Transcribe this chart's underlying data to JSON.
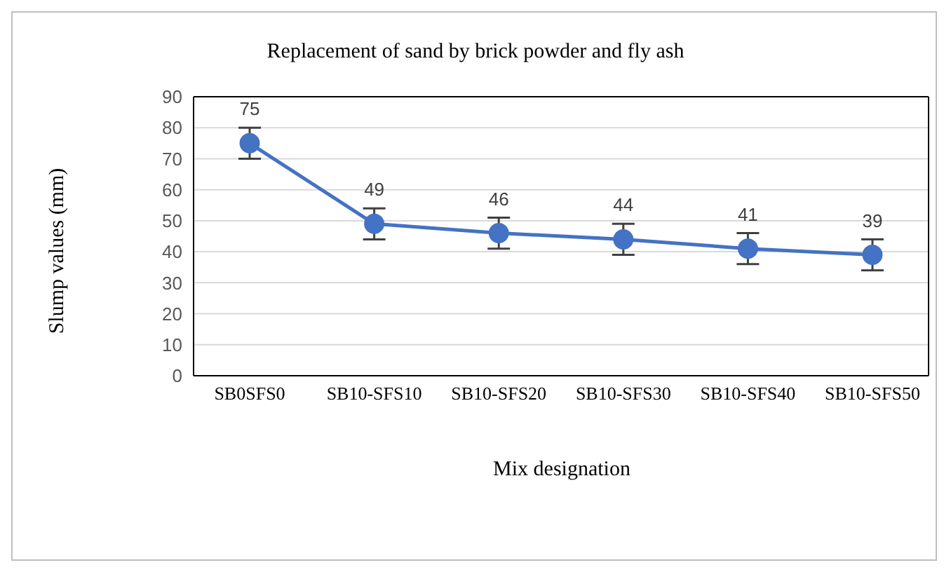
{
  "chart_data": {
    "type": "line",
    "title": "Replacement of sand by brick powder and  fly ash",
    "xlabel": "Mix designation",
    "ylabel": "Slump values (mm)",
    "categories": [
      "SB0SFS0",
      "SB10-SFS10",
      "SB10-SFS20",
      "SB10-SFS30",
      "SB10-SFS40",
      "SB10-SFS50"
    ],
    "series": [
      {
        "color": "#4472c4",
        "values": [
          75,
          49,
          46,
          44,
          41,
          39
        ],
        "errors": [
          5,
          5,
          5,
          5,
          5,
          5
        ]
      }
    ],
    "ylim": [
      0,
      90
    ],
    "yticks": [
      0,
      10,
      20,
      30,
      40,
      50,
      60,
      70,
      80,
      90
    ],
    "grid": "y",
    "marker": "circle",
    "line_style": "solid",
    "data_labels": true
  }
}
